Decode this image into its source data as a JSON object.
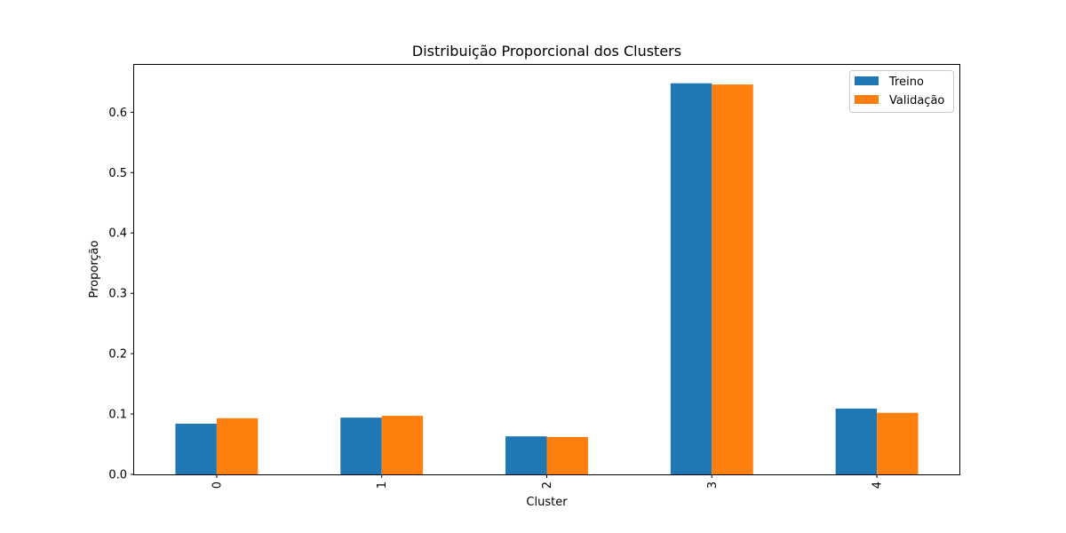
{
  "chart_data": {
    "type": "bar",
    "title": "Distribuição Proporcional dos Clusters",
    "xlabel": "Cluster",
    "ylabel": "Proporção",
    "categories": [
      "0",
      "1",
      "2",
      "3",
      "4"
    ],
    "series": [
      {
        "name": "Treino",
        "color": "#1f77b4",
        "values": [
          0.084,
          0.094,
          0.063,
          0.648,
          0.109
        ]
      },
      {
        "name": "Validação",
        "color": "#ff7f0e",
        "values": [
          0.093,
          0.097,
          0.062,
          0.646,
          0.102
        ]
      }
    ],
    "ylim": [
      0,
      0.68
    ],
    "yticks": [
      0.0,
      0.1,
      0.2,
      0.3,
      0.4,
      0.5,
      0.6
    ],
    "ytick_labels": [
      "0.0",
      "0.1",
      "0.2",
      "0.3",
      "0.4",
      "0.5",
      "0.6"
    ],
    "grid": false,
    "legend_position": "top-right",
    "xtick_rotation": "vertical"
  }
}
